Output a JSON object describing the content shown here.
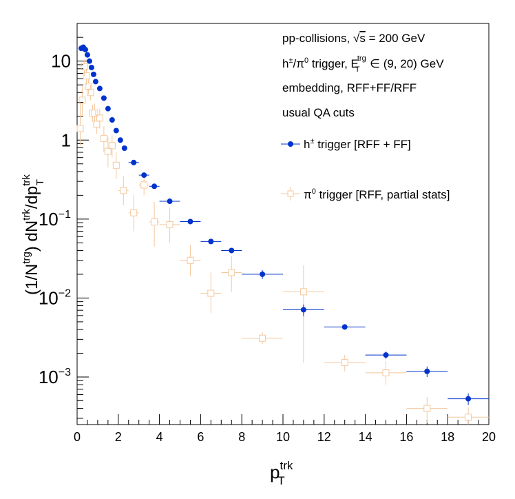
{
  "chart_data": {
    "type": "scatter",
    "x_axis": {
      "label": "p",
      "label_sup": "trk",
      "label_sub": "T",
      "range": [
        0,
        20
      ],
      "ticks": [
        0,
        2,
        4,
        6,
        8,
        10,
        12,
        14,
        16,
        18,
        20
      ],
      "tick_labels": [
        "0",
        "2",
        "4",
        "6",
        "8",
        "10",
        "12",
        "14",
        "16",
        "18",
        "20"
      ]
    },
    "y_axis": {
      "scale": "log",
      "range": [
        0.00025,
        30
      ],
      "label_parts": [
        "(1/N",
        "trg",
        ") dN",
        "trk",
        "/dp",
        "trk",
        "T"
      ],
      "ticks": [
        0.001,
        0.01,
        0.1,
        1,
        10
      ],
      "tick_labels": [
        {
          "base": "10",
          "exp": "−3"
        },
        {
          "base": "10",
          "exp": "−2"
        },
        {
          "base": "10",
          "exp": "−1"
        },
        {
          "base": "1",
          "exp": ""
        },
        {
          "base": "10",
          "exp": ""
        }
      ]
    },
    "annotations": [
      {
        "text": "pp-collisions, √s = 200 GeV"
      },
      {
        "text": "h±/π0 trigger, E_T^trg ∈ (9, 20) GeV"
      },
      {
        "text": "embedding, RFF+FF/RFF"
      },
      {
        "text": "usual QA cuts"
      }
    ],
    "series": [
      {
        "name": "h± trigger [RFF + FF]",
        "color": "#0033cc",
        "marker": "filled-circle",
        "points": [
          {
            "x": 0.2,
            "y": 14.5,
            "xerr": 0.05,
            "yerr": 0.3
          },
          {
            "x": 0.3,
            "y": 15.0,
            "xerr": 0.05,
            "yerr": 0.3
          },
          {
            "x": 0.4,
            "y": 14.0,
            "xerr": 0.05,
            "yerr": 0.3
          },
          {
            "x": 0.5,
            "y": 12.0,
            "xerr": 0.05,
            "yerr": 0.3
          },
          {
            "x": 0.6,
            "y": 10.0,
            "xerr": 0.05,
            "yerr": 0.2
          },
          {
            "x": 0.7,
            "y": 8.3,
            "xerr": 0.05,
            "yerr": 0.2
          },
          {
            "x": 0.8,
            "y": 6.8,
            "xerr": 0.05,
            "yerr": 0.15
          },
          {
            "x": 0.9,
            "y": 5.5,
            "xerr": 0.05,
            "yerr": 0.1
          },
          {
            "x": 1.1,
            "y": 4.5,
            "xerr": 0.1,
            "yerr": 0.1
          },
          {
            "x": 1.3,
            "y": 3.4,
            "xerr": 0.1,
            "yerr": 0.08
          },
          {
            "x": 1.5,
            "y": 2.5,
            "xerr": 0.1,
            "yerr": 0.06
          },
          {
            "x": 1.7,
            "y": 1.8,
            "xerr": 0.1,
            "yerr": 0.05
          },
          {
            "x": 1.9,
            "y": 1.32,
            "xerr": 0.1,
            "yerr": 0.04
          },
          {
            "x": 2.1,
            "y": 1.0,
            "xerr": 0.1,
            "yerr": 0.03
          },
          {
            "x": 2.3,
            "y": 0.79,
            "xerr": 0.1,
            "yerr": 0.02
          },
          {
            "x": 2.75,
            "y": 0.52,
            "xerr": 0.25,
            "yerr": 0.02
          },
          {
            "x": 3.25,
            "y": 0.36,
            "xerr": 0.25,
            "yerr": 0.015
          },
          {
            "x": 3.75,
            "y": 0.26,
            "xerr": 0.25,
            "yerr": 0.012
          },
          {
            "x": 4.5,
            "y": 0.168,
            "xerr": 0.5,
            "yerr": 0.008
          },
          {
            "x": 5.5,
            "y": 0.093,
            "xerr": 0.5,
            "yerr": 0.005
          },
          {
            "x": 6.5,
            "y": 0.052,
            "xerr": 0.5,
            "yerr": 0.003
          },
          {
            "x": 7.5,
            "y": 0.04,
            "xerr": 0.5,
            "yerr": 0.0025
          },
          {
            "x": 9.0,
            "y": 0.02,
            "xerr": 1.0,
            "yerr": 0.0025
          },
          {
            "x": 11.0,
            "y": 0.0071,
            "xerr": 1.0,
            "yerr": 0.0012
          },
          {
            "x": 13.0,
            "y": 0.0043,
            "xerr": 1.0,
            "yerr": 0.0003
          },
          {
            "x": 15.0,
            "y": 0.0019,
            "xerr": 1.0,
            "yerr": 0.0002
          },
          {
            "x": 17.0,
            "y": 0.00118,
            "xerr": 1.0,
            "yerr": 0.00018
          },
          {
            "x": 19.0,
            "y": 0.00053,
            "xerr": 1.0,
            "yerr": 9e-05
          }
        ]
      },
      {
        "name": "π0 trigger [RFF, partial stats]",
        "color": "#f5c79c",
        "marker": "open-square",
        "points": [
          {
            "x": 0.15,
            "y": 1.4,
            "xerr": 0.05,
            "ylo": 0.85,
            "yhi": 3.0
          },
          {
            "x": 0.25,
            "y": 3.2,
            "xerr": 0.05,
            "ylo": 2.0,
            "yhi": 4.8
          },
          {
            "x": 0.35,
            "y": 8.5,
            "xerr": 0.05,
            "ylo": 6.5,
            "yhi": 10.5
          },
          {
            "x": 0.45,
            "y": 6.5,
            "xerr": 0.05,
            "ylo": 5.0,
            "yhi": 8.0
          },
          {
            "x": 0.55,
            "y": 4.8,
            "xerr": 0.05,
            "ylo": 3.8,
            "yhi": 6.0
          },
          {
            "x": 0.65,
            "y": 4.0,
            "xerr": 0.05,
            "ylo": 3.2,
            "yhi": 5.0
          },
          {
            "x": 0.75,
            "y": 2.2,
            "xerr": 0.05,
            "ylo": 1.7,
            "yhi": 2.8
          },
          {
            "x": 0.85,
            "y": 2.2,
            "xerr": 0.05,
            "ylo": 1.7,
            "yhi": 2.9
          },
          {
            "x": 0.95,
            "y": 1.6,
            "xerr": 0.05,
            "ylo": 1.2,
            "yhi": 2.1
          },
          {
            "x": 1.1,
            "y": 1.9,
            "xerr": 0.1,
            "ylo": 1.4,
            "yhi": 2.5
          },
          {
            "x": 1.3,
            "y": 1.05,
            "xerr": 0.1,
            "ylo": 0.7,
            "yhi": 1.5
          },
          {
            "x": 1.5,
            "y": 0.72,
            "xerr": 0.1,
            "ylo": 0.45,
            "yhi": 1.1
          },
          {
            "x": 1.7,
            "y": 0.85,
            "xerr": 0.1,
            "ylo": 0.6,
            "yhi": 1.15
          },
          {
            "x": 1.9,
            "y": 0.48,
            "xerr": 0.1,
            "ylo": 0.32,
            "yhi": 0.7
          },
          {
            "x": 2.25,
            "y": 0.23,
            "xerr": 0.25,
            "ylo": 0.15,
            "yhi": 0.35
          },
          {
            "x": 2.75,
            "y": 0.12,
            "xerr": 0.25,
            "ylo": 0.07,
            "yhi": 0.2
          },
          {
            "x": 3.25,
            "y": 0.27,
            "xerr": 0.25,
            "ylo": 0.2,
            "yhi": 0.36
          },
          {
            "x": 3.75,
            "y": 0.092,
            "xerr": 0.25,
            "ylo": 0.045,
            "yhi": 0.165
          },
          {
            "x": 4.5,
            "y": 0.085,
            "xerr": 0.5,
            "ylo": 0.05,
            "yhi": 0.14
          },
          {
            "x": 5.5,
            "y": 0.03,
            "xerr": 0.5,
            "ylo": 0.019,
            "yhi": 0.047
          },
          {
            "x": 6.5,
            "y": 0.0115,
            "xerr": 0.5,
            "ylo": 0.0065,
            "yhi": 0.021
          },
          {
            "x": 7.5,
            "y": 0.021,
            "xerr": 0.5,
            "ylo": 0.012,
            "yhi": 0.034
          },
          {
            "x": 9.0,
            "y": 0.0031,
            "xerr": 1.0,
            "ylo": 0.0026,
            "yhi": 0.0037
          },
          {
            "x": 11.0,
            "y": 0.012,
            "xerr": 1.0,
            "ylo": 0.0015,
            "yhi": 0.026
          },
          {
            "x": 13.0,
            "y": 0.00152,
            "xerr": 1.0,
            "ylo": 0.00118,
            "yhi": 0.0019
          },
          {
            "x": 15.0,
            "y": 0.00113,
            "xerr": 1.0,
            "ylo": 0.0008,
            "yhi": 0.0016
          },
          {
            "x": 17.0,
            "y": 0.0004,
            "xerr": 1.0,
            "ylo": 0.00026,
            "yhi": 0.00056
          },
          {
            "x": 19.0,
            "y": 0.00031,
            "xerr": 1.0,
            "ylo": 0.00025,
            "yhi": 0.00042
          }
        ]
      }
    ]
  }
}
